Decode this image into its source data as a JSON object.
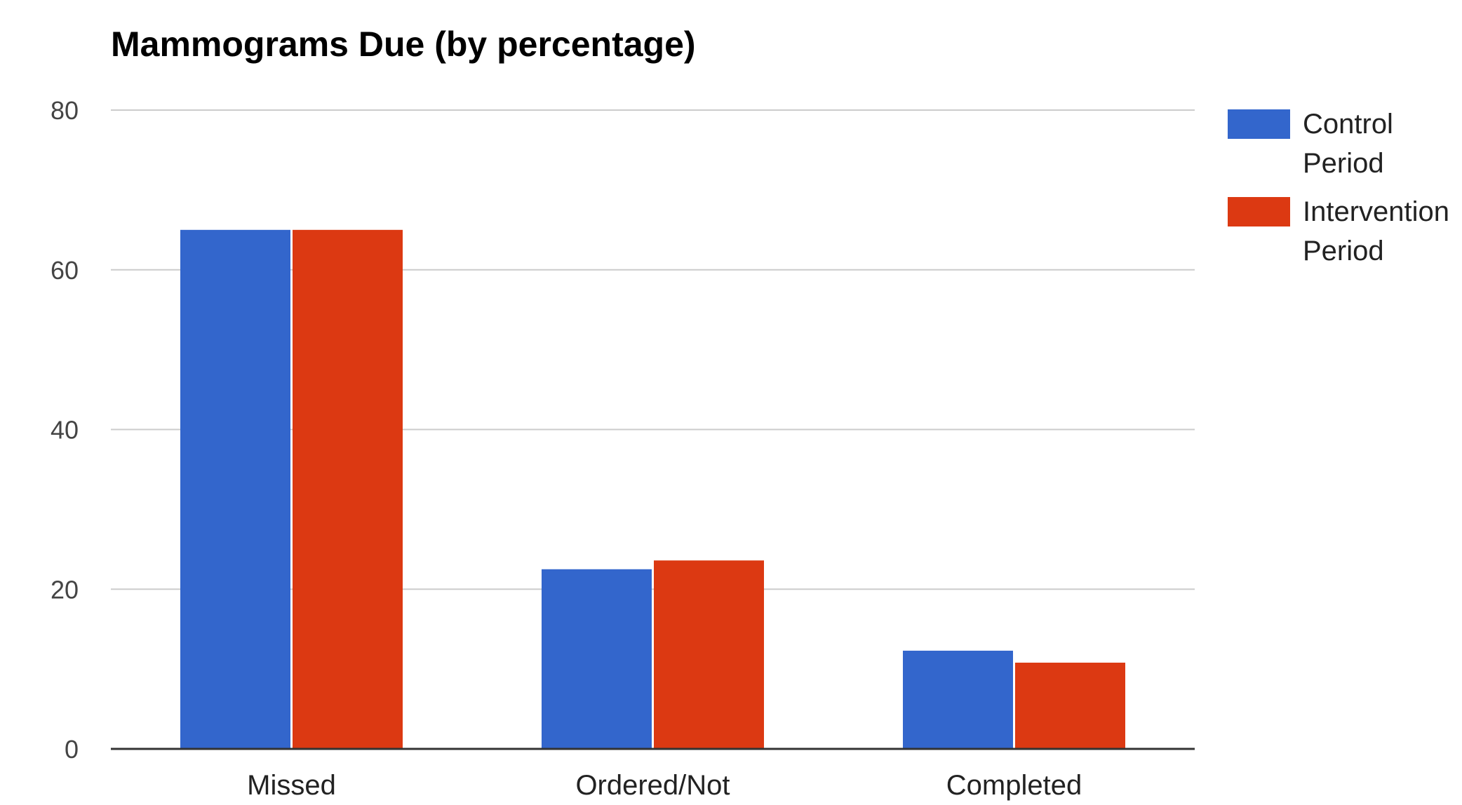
{
  "chart_data": {
    "type": "bar",
    "title": "Mammograms Due (by percentage)",
    "xlabel": "",
    "ylabel": "",
    "categories": [
      "Missed",
      "Ordered/Not",
      "Completed"
    ],
    "series": [
      {
        "name": "Control Period",
        "name_lines": [
          "Control",
          "Period"
        ],
        "color": "#3366cc",
        "values": [
          65,
          22.5,
          12.3
        ]
      },
      {
        "name": "Intervention Period",
        "name_lines": [
          "Intervention",
          "Period"
        ],
        "color": "#dc3912",
        "values": [
          65,
          23.6,
          10.8
        ]
      }
    ],
    "ylim": [
      0,
      80
    ],
    "yticks": [
      0,
      20,
      40,
      60,
      80
    ],
    "grid": true,
    "legend_position": "right"
  }
}
